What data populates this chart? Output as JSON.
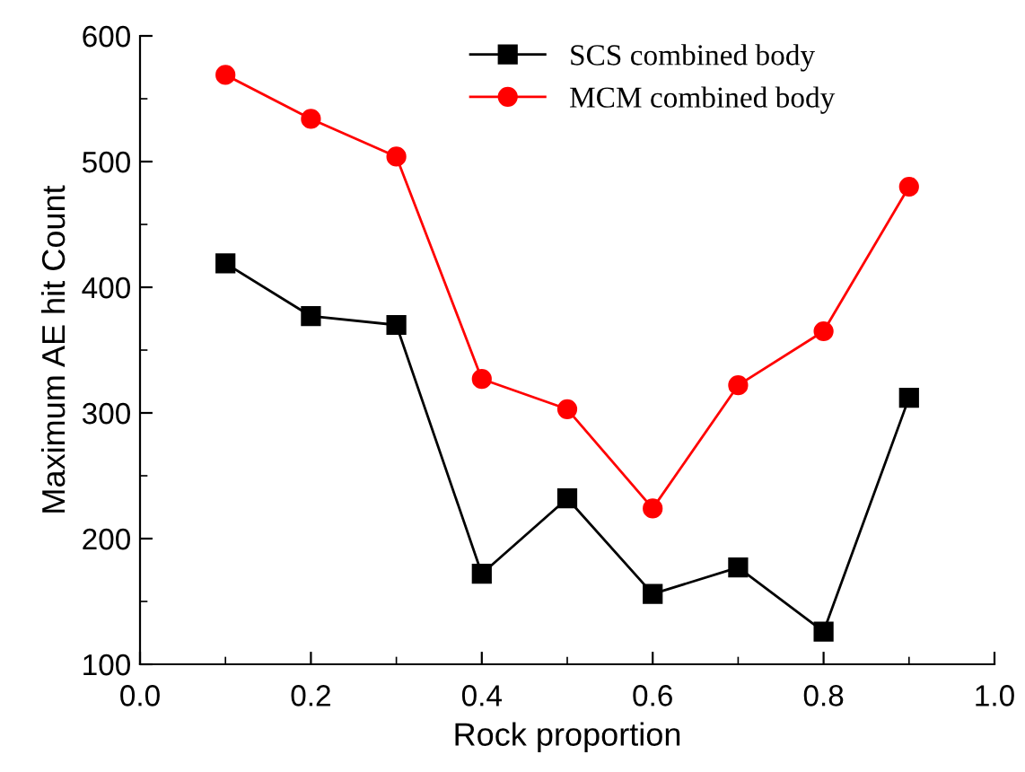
{
  "chart_data": {
    "type": "line",
    "xlabel": "Rock proportion",
    "ylabel": "Maximum AE hit Count",
    "x": [
      0.1,
      0.2,
      0.3,
      0.4,
      0.5,
      0.6,
      0.7,
      0.8,
      0.9
    ],
    "series": [
      {
        "name": "SCS combined body",
        "color": "#000000",
        "marker": "square",
        "values": [
          419,
          377,
          370,
          172,
          232,
          156,
          177,
          126,
          312
        ]
      },
      {
        "name": "MCM combined body",
        "color": "#ff0000",
        "marker": "circle",
        "values": [
          569,
          534,
          504,
          327,
          303,
          224,
          322,
          365,
          480
        ]
      }
    ],
    "xlim": [
      0.0,
      1.0
    ],
    "xticks": [
      {
        "value": 0.0,
        "label": "0.0"
      },
      {
        "value": 0.2,
        "label": "0.2"
      },
      {
        "value": 0.4,
        "label": "0.4"
      },
      {
        "value": 0.6,
        "label": "0.6"
      },
      {
        "value": 0.8,
        "label": "0.8"
      },
      {
        "value": 1.0,
        "label": "1.0"
      }
    ],
    "ylim": [
      100,
      600
    ],
    "yticks": [
      100,
      200,
      300,
      400,
      500,
      600
    ],
    "grid": false,
    "legend": "top",
    "line_style": "solid"
  }
}
